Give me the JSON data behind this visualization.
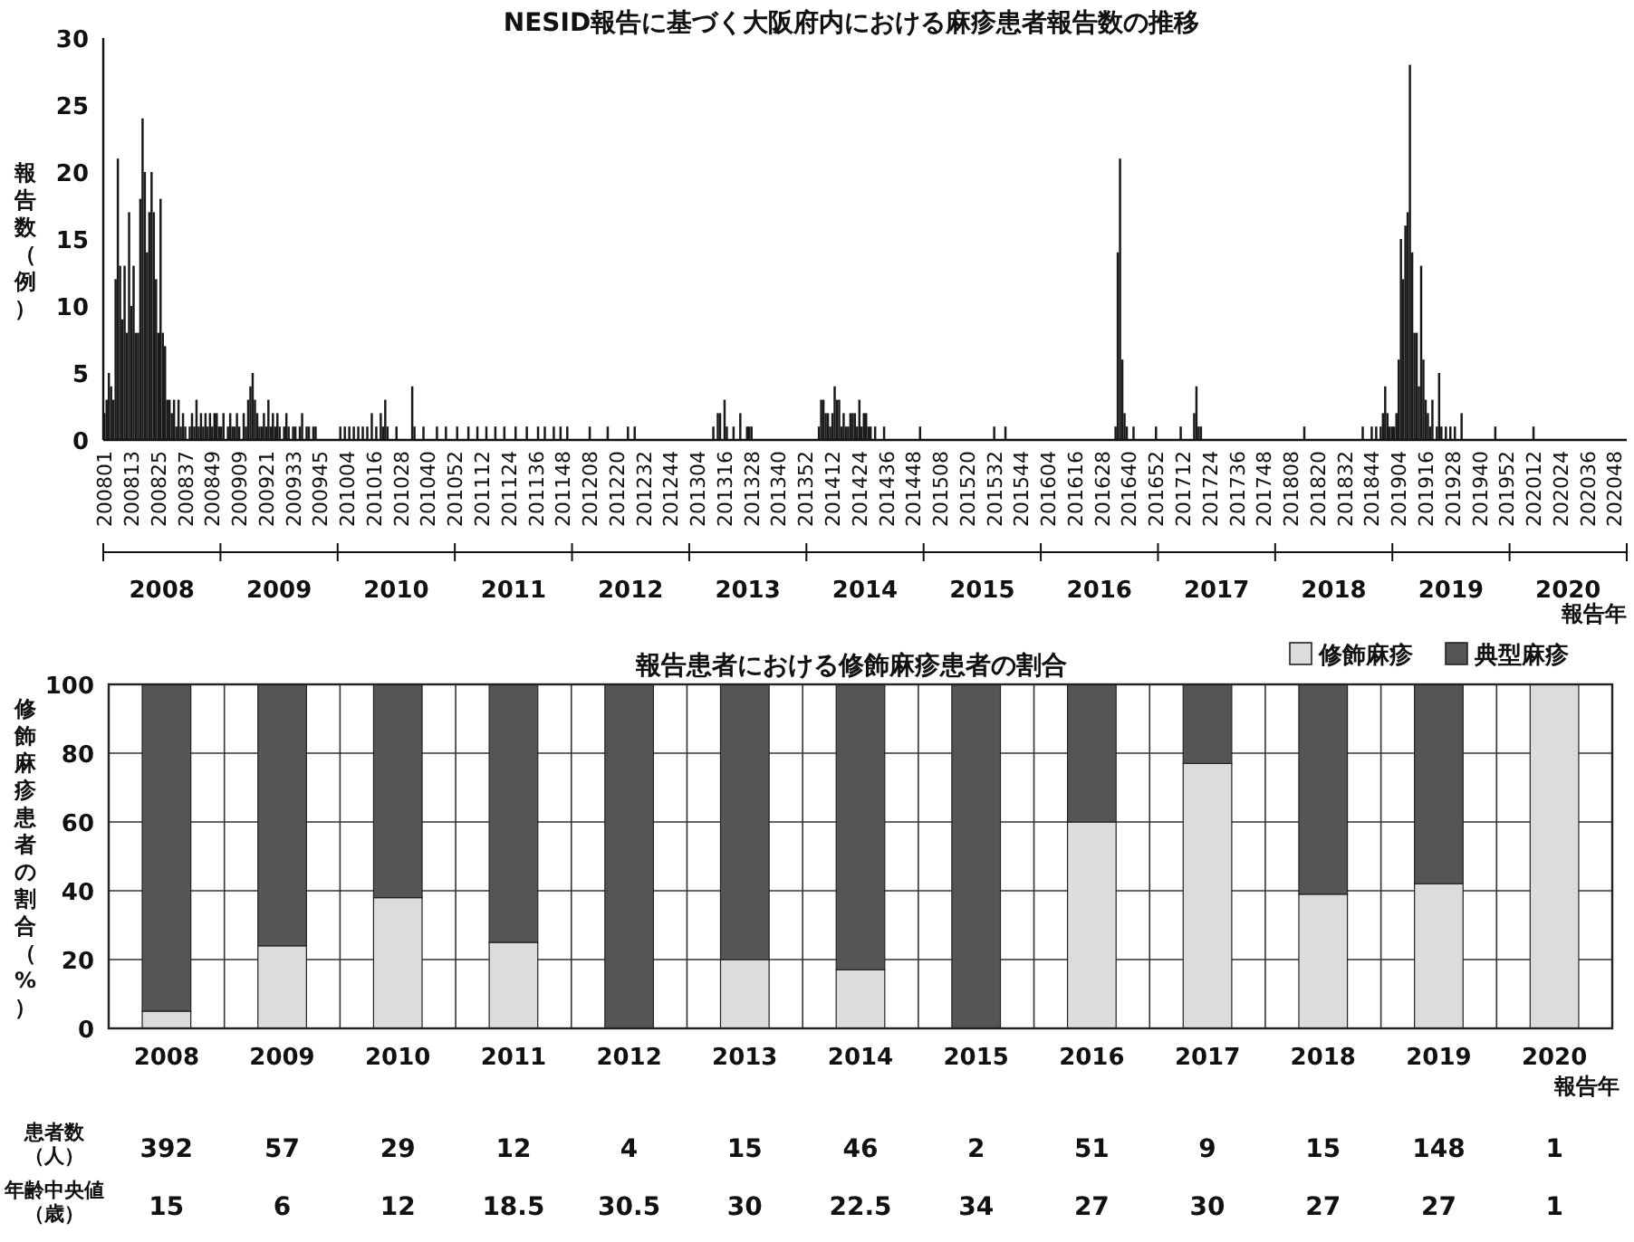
{
  "chart_data": [
    {
      "type": "bar",
      "title": "NESID報告に基づく大阪府内における麻疹患者報告数の推移",
      "ylabel": "報告数（例）",
      "xlabel": "報告年",
      "color": "#1a1a1a",
      "ylim": [
        0,
        30
      ],
      "yticks": [
        0,
        5,
        10,
        15,
        20,
        25,
        30
      ],
      "annotations": [
        "2008",
        "2009",
        "2010",
        "2011",
        "2012",
        "2013",
        "2014",
        "2015",
        "2016",
        "2017",
        "2018",
        "2019",
        "2020"
      ],
      "categories": [
        "200801",
        null,
        null,
        null,
        null,
        null,
        null,
        null,
        null,
        null,
        null,
        null,
        "200813",
        null,
        null,
        null,
        null,
        null,
        null,
        null,
        null,
        null,
        null,
        null,
        "200825",
        null,
        null,
        null,
        null,
        null,
        null,
        null,
        null,
        null,
        null,
        null,
        "200837",
        null,
        null,
        null,
        null,
        null,
        null,
        null,
        null,
        null,
        null,
        null,
        "200849",
        null,
        null,
        null,
        null,
        null,
        null,
        null,
        null,
        null,
        null,
        null,
        "200909",
        null,
        null,
        null,
        null,
        null,
        null,
        null,
        null,
        null,
        null,
        null,
        "200921",
        null,
        null,
        null,
        null,
        null,
        null,
        null,
        null,
        null,
        null,
        null,
        "200933",
        null,
        null,
        null,
        null,
        null,
        null,
        null,
        null,
        null,
        null,
        null,
        "200945",
        null,
        null,
        null,
        null,
        null,
        null,
        null,
        null,
        null,
        null,
        null,
        "201004",
        null,
        null,
        null,
        null,
        null,
        null,
        null,
        null,
        null,
        null,
        null,
        "201016",
        null,
        null,
        null,
        null,
        null,
        null,
        null,
        null,
        null,
        null,
        null,
        "201028",
        null,
        null,
        null,
        null,
        null,
        null,
        null,
        null,
        null,
        null,
        null,
        "201040",
        null,
        null,
        null,
        null,
        null,
        null,
        null,
        null,
        null,
        null,
        null,
        "201052",
        null,
        null,
        null,
        null,
        null,
        null,
        null,
        null,
        null,
        null,
        null,
        "201112",
        null,
        null,
        null,
        null,
        null,
        null,
        null,
        null,
        null,
        null,
        null,
        "201124",
        null,
        null,
        null,
        null,
        null,
        null,
        null,
        null,
        null,
        null,
        null,
        "201136",
        null,
        null,
        null,
        null,
        null,
        null,
        null,
        null,
        null,
        null,
        null,
        "201148",
        null,
        null,
        null,
        null,
        null,
        null,
        null,
        null,
        null,
        null,
        null,
        "201208",
        null,
        null,
        null,
        null,
        null,
        null,
        null,
        null,
        null,
        null,
        null,
        "201220",
        null,
        null,
        null,
        null,
        null,
        null,
        null,
        null,
        null,
        null,
        null,
        "201232",
        null,
        null,
        null,
        null,
        null,
        null,
        null,
        null,
        null,
        null,
        null,
        "201244",
        null,
        null,
        null,
        null,
        null,
        null,
        null,
        null,
        null,
        null,
        null,
        "201304",
        null,
        null,
        null,
        null,
        null,
        null,
        null,
        null,
        null,
        null,
        null,
        "201316",
        null,
        null,
        null,
        null,
        null,
        null,
        null,
        null,
        null,
        null,
        null,
        "201328",
        null,
        null,
        null,
        null,
        null,
        null,
        null,
        null,
        null,
        null,
        null,
        "201340",
        null,
        null,
        null,
        null,
        null,
        null,
        null,
        null,
        null,
        null,
        null,
        "201352",
        null,
        null,
        null,
        null,
        null,
        null,
        null,
        null,
        null,
        null,
        null,
        "201412",
        null,
        null,
        null,
        null,
        null,
        null,
        null,
        null,
        null,
        null,
        null,
        "201424",
        null,
        null,
        null,
        null,
        null,
        null,
        null,
        null,
        null,
        null,
        null,
        "201436",
        null,
        null,
        null,
        null,
        null,
        null,
        null,
        null,
        null,
        null,
        null,
        "201448",
        null,
        null,
        null,
        null,
        null,
        null,
        null,
        null,
        null,
        null,
        null,
        "201508",
        null,
        null,
        null,
        null,
        null,
        null,
        null,
        null,
        null,
        null,
        null,
        "201520",
        null,
        null,
        null,
        null,
        null,
        null,
        null,
        null,
        null,
        null,
        null,
        "201532",
        null,
        null,
        null,
        null,
        null,
        null,
        null,
        null,
        null,
        null,
        null,
        "201544",
        null,
        null,
        null,
        null,
        null,
        null,
        null,
        null,
        null,
        null,
        null,
        "201604",
        null,
        null,
        null,
        null,
        null,
        null,
        null,
        null,
        null,
        null,
        null,
        "201616",
        null,
        null,
        null,
        null,
        null,
        null,
        null,
        null,
        null,
        null,
        null,
        "201628",
        null,
        null,
        null,
        null,
        null,
        null,
        null,
        null,
        null,
        null,
        null,
        "201640",
        null,
        null,
        null,
        null,
        null,
        null,
        null,
        null,
        null,
        null,
        null,
        "201652",
        null,
        null,
        null,
        null,
        null,
        null,
        null,
        null,
        null,
        null,
        null,
        "201712",
        null,
        null,
        null,
        null,
        null,
        null,
        null,
        null,
        null,
        null,
        null,
        "201724",
        null,
        null,
        null,
        null,
        null,
        null,
        null,
        null,
        null,
        null,
        null,
        "201736",
        null,
        null,
        null,
        null,
        null,
        null,
        null,
        null,
        null,
        null,
        null,
        "201748",
        null,
        null,
        null,
        null,
        null,
        null,
        null,
        null,
        null,
        null,
        null,
        "201808",
        null,
        null,
        null,
        null,
        null,
        null,
        null,
        null,
        null,
        null,
        null,
        "201820",
        null,
        null,
        null,
        null,
        null,
        null,
        null,
        null,
        null,
        null,
        null,
        "201832",
        null,
        null,
        null,
        null,
        null,
        null,
        null,
        null,
        null,
        null,
        null,
        "201844",
        null,
        null,
        null,
        null,
        null,
        null,
        null,
        null,
        null,
        null,
        null,
        "201904",
        null,
        null,
        null,
        null,
        null,
        null,
        null,
        null,
        null,
        null,
        null,
        "201916",
        null,
        null,
        null,
        null,
        null,
        null,
        null,
        null,
        null,
        null,
        null,
        "201928",
        null,
        null,
        null,
        null,
        null,
        null,
        null,
        null,
        null,
        null,
        null,
        "201940",
        null,
        null,
        null,
        null,
        null,
        null,
        null,
        null,
        null,
        null,
        null,
        "201952",
        null,
        null,
        null,
        null,
        null,
        null,
        null,
        null,
        null,
        null,
        null,
        "202012",
        null,
        null,
        null,
        null,
        null,
        null,
        null,
        null,
        null,
        null,
        null,
        "202024",
        null,
        null,
        null,
        null,
        null,
        null,
        null,
        null,
        null,
        null,
        null,
        "202036",
        null,
        null,
        null,
        null,
        null,
        null,
        null,
        null,
        null,
        null,
        null,
        "202048",
        null,
        null,
        null,
        null,
        null
      ],
      "values": [
        2,
        3,
        5,
        4,
        3,
        12,
        21,
        13,
        9,
        13,
        8,
        17,
        10,
        13,
        8,
        8,
        18,
        24,
        20,
        14,
        17,
        20,
        17,
        12,
        8,
        18,
        8,
        7,
        3,
        3,
        2,
        3,
        1,
        3,
        1,
        2,
        1,
        0,
        1,
        2,
        1,
        3,
        1,
        2,
        1,
        2,
        1,
        2,
        1,
        2,
        2,
        1,
        1,
        2,
        0,
        1,
        2,
        1,
        1,
        2,
        1,
        0,
        2,
        1,
        3,
        4,
        5,
        3,
        2,
        1,
        1,
        2,
        1,
        3,
        1,
        2,
        1,
        2,
        1,
        0,
        1,
        2,
        1,
        0,
        1,
        1,
        0,
        1,
        2,
        0,
        1,
        1,
        0,
        1,
        1,
        0,
        0,
        0,
        0,
        0,
        0,
        0,
        0,
        0,
        0,
        1,
        0,
        1,
        0,
        1,
        0,
        1,
        0,
        1,
        0,
        1,
        0,
        1,
        0,
        2,
        0,
        1,
        0,
        2,
        1,
        3,
        1,
        0,
        0,
        0,
        1,
        0,
        0,
        0,
        0,
        0,
        0,
        4,
        1,
        0,
        0,
        0,
        1,
        0,
        0,
        0,
        0,
        0,
        1,
        0,
        0,
        0,
        1,
        0,
        0,
        0,
        0,
        1,
        0,
        0,
        0,
        0,
        1,
        0,
        0,
        0,
        1,
        0,
        0,
        0,
        1,
        0,
        0,
        0,
        1,
        0,
        0,
        0,
        1,
        0,
        0,
        0,
        0,
        1,
        0,
        0,
        0,
        0,
        1,
        0,
        0,
        0,
        0,
        1,
        0,
        0,
        1,
        0,
        0,
        0,
        1,
        0,
        0,
        1,
        0,
        0,
        1,
        0,
        0,
        0,
        0,
        0,
        0,
        0,
        0,
        0,
        1,
        0,
        0,
        0,
        0,
        0,
        0,
        0,
        1,
        0,
        0,
        0,
        0,
        0,
        0,
        0,
        0,
        1,
        0,
        0,
        1,
        0,
        0,
        0,
        0,
        0,
        0,
        0,
        0,
        0,
        0,
        0,
        0,
        0,
        0,
        0,
        0,
        0,
        0,
        0,
        0,
        0,
        0,
        0,
        0,
        0,
        0,
        0,
        0,
        0,
        0,
        0,
        0,
        0,
        0,
        1,
        0,
        2,
        2,
        0,
        3,
        1,
        0,
        0,
        1,
        0,
        0,
        2,
        0,
        0,
        1,
        1,
        1,
        0,
        0,
        0,
        0,
        0,
        0,
        0,
        0,
        0,
        0,
        0,
        0,
        0,
        0,
        0,
        0,
        0,
        0,
        0,
        0,
        0,
        0,
        0,
        0,
        0,
        0,
        0,
        0,
        0,
        1,
        3,
        3,
        2,
        2,
        1,
        2,
        4,
        3,
        3,
        1,
        2,
        1,
        1,
        2,
        2,
        2,
        1,
        3,
        1,
        2,
        2,
        1,
        1,
        0,
        1,
        0,
        0,
        0,
        1,
        0,
        0,
        0,
        0,
        0,
        0,
        0,
        0,
        0,
        0,
        0,
        0,
        0,
        0,
        0,
        1,
        0,
        0,
        0,
        0,
        0,
        0,
        0,
        0,
        0,
        0,
        0,
        0,
        0,
        0,
        0,
        0,
        0,
        0,
        0,
        0,
        0,
        0,
        0,
        0,
        0,
        0,
        0,
        0,
        0,
        0,
        0,
        0,
        1,
        0,
        0,
        0,
        0,
        1,
        0,
        0,
        0,
        0,
        0,
        0,
        0,
        0,
        0,
        0,
        0,
        0,
        0,
        0,
        0,
        0,
        0,
        0,
        0,
        0,
        0,
        0,
        0,
        0,
        0,
        0,
        0,
        0,
        0,
        0,
        0,
        0,
        0,
        0,
        0,
        0,
        0,
        0,
        0,
        0,
        0,
        0,
        0,
        0,
        0,
        0,
        0,
        0,
        1,
        14,
        21,
        6,
        2,
        1,
        0,
        0,
        1,
        0,
        0,
        0,
        0,
        0,
        0,
        0,
        0,
        0,
        1,
        0,
        0,
        0,
        0,
        0,
        0,
        0,
        0,
        0,
        0,
        1,
        0,
        0,
        0,
        0,
        0,
        2,
        4,
        1,
        1,
        0,
        0,
        0,
        0,
        0,
        0,
        0,
        0,
        0,
        0,
        0,
        0,
        0,
        0,
        0,
        0,
        0,
        0,
        0,
        0,
        0,
        0,
        0,
        0,
        0,
        0,
        0,
        0,
        0,
        0,
        0,
        0,
        0,
        0,
        0,
        0,
        0,
        0,
        0,
        0,
        0,
        0,
        0,
        0,
        0,
        1,
        0,
        0,
        0,
        0,
        0,
        0,
        0,
        0,
        0,
        0,
        0,
        0,
        0,
        0,
        0,
        0,
        0,
        0,
        0,
        0,
        0,
        0,
        0,
        0,
        0,
        1,
        0,
        0,
        0,
        1,
        0,
        1,
        0,
        1,
        2,
        4,
        2,
        1,
        1,
        1,
        2,
        6,
        15,
        12,
        16,
        17,
        28,
        14,
        8,
        8,
        4,
        13,
        6,
        3,
        2,
        1,
        3,
        0,
        1,
        5,
        1,
        0,
        1,
        0,
        1,
        0,
        1,
        0,
        0,
        2,
        0,
        0,
        0,
        0,
        0,
        0,
        0,
        0,
        0,
        0,
        0,
        0,
        0,
        0,
        1,
        0,
        0,
        0,
        0,
        0,
        0,
        0,
        0,
        0,
        0,
        0,
        0,
        0,
        0,
        0,
        0,
        1,
        0,
        0,
        0,
        0,
        0,
        0,
        0,
        0,
        0,
        0,
        0,
        0,
        0,
        0,
        0,
        0,
        0,
        0,
        0,
        0,
        0,
        0,
        0,
        0,
        0,
        0,
        0,
        0,
        0,
        0,
        0,
        0,
        0,
        0,
        0,
        0,
        0,
        0,
        0,
        0,
        0
      ]
    },
    {
      "type": "bar",
      "stacked": true,
      "title": "報告患者における修飾麻疹患者の割合",
      "ylabel": "修飾麻疹患者の割合（%）",
      "xlabel": "報告年",
      "ylim": [
        0,
        100
      ],
      "yticks": [
        0,
        20,
        40,
        60,
        80,
        100
      ],
      "grid": true,
      "legend": "top right",
      "categories": [
        "2008",
        "2009",
        "2010",
        "2011",
        "2012",
        "2013",
        "2014",
        "2015",
        "2016",
        "2017",
        "2018",
        "2019",
        "2020"
      ],
      "series": [
        {
          "name": "修飾麻疹",
          "color": "#dcdcdc",
          "values": [
            5,
            24,
            38,
            25,
            0,
            20,
            17,
            0,
            60,
            77,
            39,
            42,
            100
          ]
        },
        {
          "name": "典型麻疹",
          "color": "#555555",
          "values": [
            95,
            76,
            62,
            75,
            100,
            80,
            83,
            100,
            40,
            23,
            61,
            58,
            0
          ]
        }
      ],
      "annotations": [
        "患者数（人）",
        "392",
        "57",
        "29",
        "12",
        "4",
        "15",
        "46",
        "2",
        "51",
        "9",
        "15",
        "148",
        "1",
        "年齢中央値（歳）",
        "15",
        "6",
        "12",
        "18.5",
        "30.5",
        "30",
        "22.5",
        "34",
        "27",
        "30",
        "27",
        "27",
        "1"
      ]
    }
  ]
}
